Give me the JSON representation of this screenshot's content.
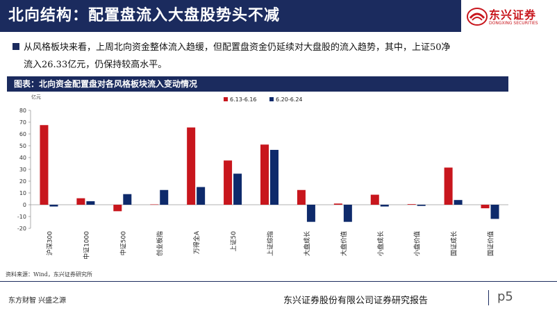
{
  "header": {
    "title": "北向结构：配置盘流入大盘股势头不减"
  },
  "logo": {
    "cn": "东兴证券",
    "en": "DONGXING SECURITIES"
  },
  "text": {
    "line1": "从风格板块来看，上周北向资金整体流入趋缓，但配置盘资金仍延续对大盘股的流入趋势，其中，上证50净",
    "line2": "流入26.33亿元，仍保持较高水平。"
  },
  "chart_header": "图表：北向资金配置盘对各风格板块流入变动情况",
  "chart_data": {
    "type": "bar",
    "unit_label": "亿元",
    "categories": [
      "沪深300",
      "中证1000",
      "中证500",
      "创业板指",
      "万得全A",
      "上证50",
      "上证综指",
      "大盘成长",
      "大盘价值",
      "小盘成长",
      "小盘价值",
      "国证成长",
      "国证价值"
    ],
    "series": [
      {
        "name": "6.13-6.16",
        "color": "#c8161d",
        "values": [
          67.5,
          5.5,
          -5.5,
          0.3,
          65.5,
          37.5,
          51,
          12.5,
          1,
          8.5,
          0.5,
          31.5,
          -3
        ]
      },
      {
        "name": "6.20-6.24",
        "color": "#0e2a6b",
        "values": [
          -1.5,
          3,
          9,
          12.5,
          15,
          26.33,
          46.5,
          -14.5,
          -14.5,
          -1.5,
          -1,
          4,
          -12
        ]
      }
    ],
    "ylim": [
      -20,
      80
    ],
    "yticks": [
      -20,
      -10,
      0,
      10,
      20,
      30,
      40,
      50,
      60,
      70,
      80
    ],
    "legend_position": "top-center",
    "grid": false
  },
  "source": "资料来源：Wind，东兴证券研究所",
  "footer": {
    "slogan": "东方财智 兴盛之源",
    "company": "东兴证券股份有限公司证券研究报告",
    "page": "p5"
  },
  "colors": {
    "navy": "#1b2b5e",
    "red": "#c8161d"
  }
}
